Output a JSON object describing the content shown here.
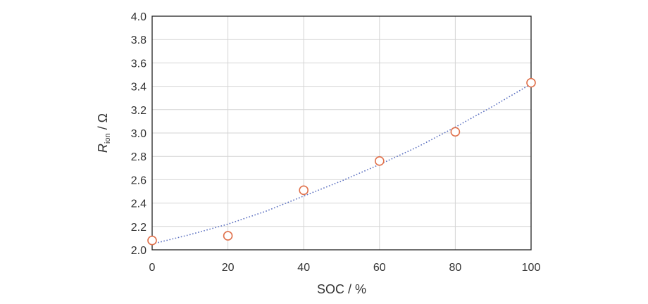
{
  "chart_data": {
    "type": "scatter",
    "title": "",
    "xlabel": "SOC / %",
    "ylabel": {
      "symbol": "R",
      "subscript": "ion",
      "unit": " / Ω"
    },
    "xlim": [
      0,
      100
    ],
    "ylim": [
      2.0,
      4.0
    ],
    "x_ticks": [
      "0",
      "20",
      "40",
      "60",
      "80",
      "100"
    ],
    "y_ticks": [
      "2.0",
      "2.2",
      "2.4",
      "2.6",
      "2.8",
      "3.0",
      "3.2",
      "3.4",
      "3.6",
      "3.8",
      "4.0"
    ],
    "grid": true,
    "legend": "none",
    "series": [
      {
        "marker": "open-circle",
        "color": "#e0704a",
        "x": [
          0,
          20,
          40,
          60,
          80,
          100
        ],
        "y": [
          2.08,
          2.12,
          2.51,
          2.76,
          3.01,
          3.43
        ]
      }
    ],
    "trendline": {
      "style": "dotted",
      "color": "#5a6fc0",
      "fit": "polynomial-2",
      "x": [
        0,
        10,
        20,
        30,
        40,
        50,
        60,
        70,
        80,
        90,
        100
      ],
      "y": [
        2.05,
        2.13,
        2.22,
        2.33,
        2.46,
        2.59,
        2.73,
        2.88,
        3.05,
        3.23,
        3.42
      ]
    }
  }
}
